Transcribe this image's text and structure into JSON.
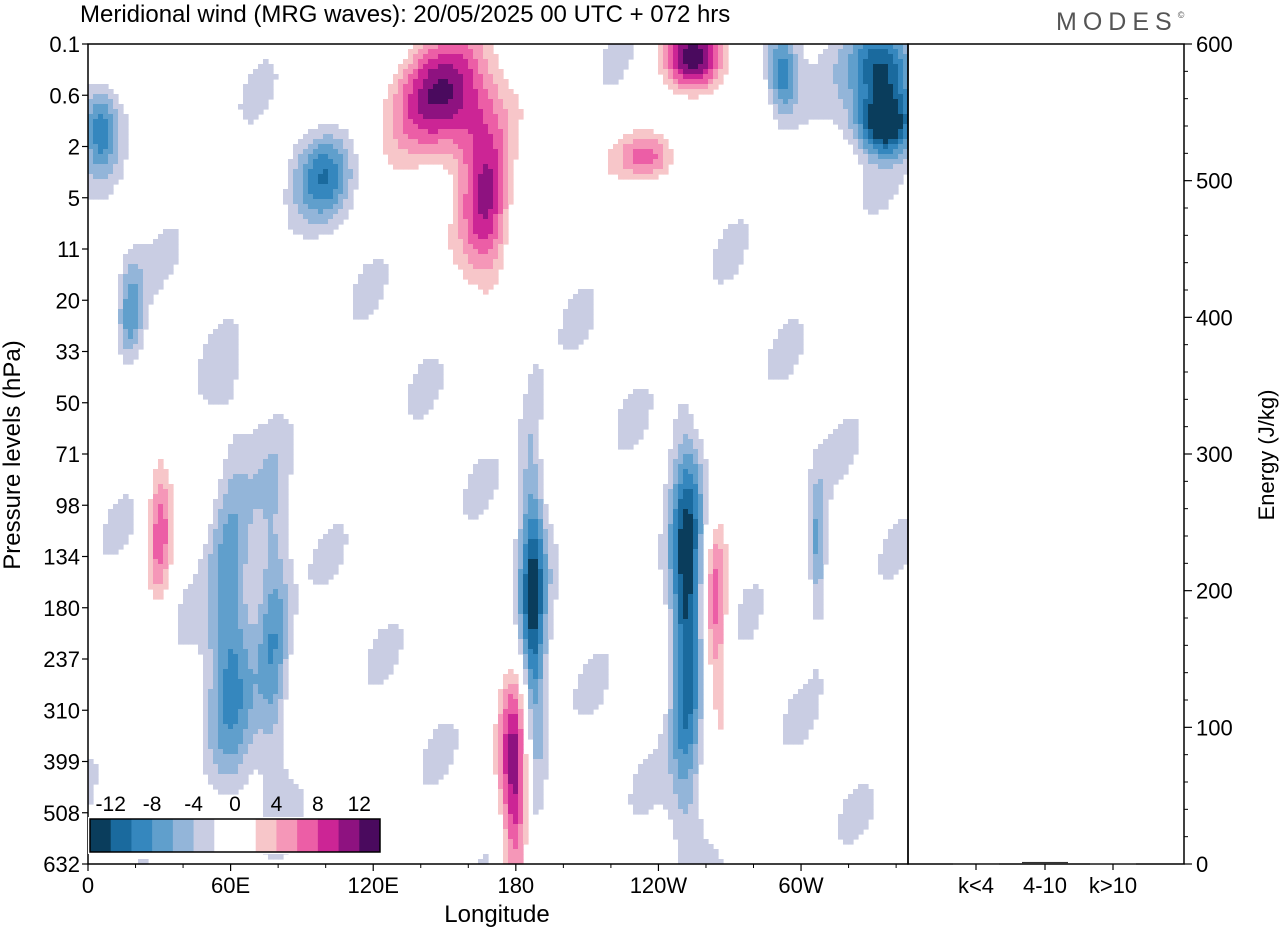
{
  "chart_data": {
    "type": "heatmap",
    "title": "Meridional wind (MRG waves):  20/05/2025  00 UTC  + 072 hrs",
    "xlabel": "Longitude",
    "ylabel": "Pressure levels (hPa)",
    "y2label": "Energy (J/kg)",
    "x_ticks": [
      {
        "lon": 0,
        "label": "0"
      },
      {
        "lon": 60,
        "label": "60E"
      },
      {
        "lon": 120,
        "label": "120E"
      },
      {
        "lon": 180,
        "label": "180"
      },
      {
        "lon": 240,
        "label": "120W"
      },
      {
        "lon": 300,
        "label": "60W"
      }
    ],
    "xlim": [
      0,
      345
    ],
    "y_ticks": [
      "0.1",
      "0.6",
      "2",
      "5",
      "11",
      "20",
      "33",
      "50",
      "71",
      "98",
      "134",
      "180",
      "237",
      "310",
      "399",
      "508",
      "632"
    ],
    "colorbar": {
      "labels": [
        "-12",
        "-8",
        "-4",
        "0",
        "4",
        "8",
        "12"
      ],
      "levels": [
        -14,
        -12,
        -10,
        -8,
        -6,
        -4,
        -2,
        2,
        4,
        6,
        8,
        10,
        12,
        14
      ],
      "colors": [
        "#0a3d5c",
        "#1a6a9e",
        "#3587be",
        "#609fcc",
        "#93b5d9",
        "#c9cde3",
        "#ffffff",
        "#ffffff",
        "#f7c6c9",
        "#f597b8",
        "#ec5ea6",
        "#cc2595",
        "#8e1280",
        "#4a0a5e"
      ]
    },
    "blobs": [
      {
        "lon": 180,
        "level": 14.5,
        "val": 14,
        "rlon": 5,
        "rlev": 1.6
      },
      {
        "lon": 187,
        "level": 11.5,
        "val": -12,
        "rlon": 4,
        "rlev": 2.8
      },
      {
        "lon": 252,
        "level": 11.2,
        "val": -14,
        "rlon": 5,
        "rlev": 2.5
      },
      {
        "lon": 264,
        "level": 11.0,
        "val": 10,
        "rlon": 4,
        "rlev": 1.4
      },
      {
        "lon": 307,
        "level": 10.0,
        "val": -8,
        "rlon": 3,
        "rlev": 1.0
      },
      {
        "lon": 150,
        "level": 1.0,
        "val": 15,
        "rlon": 15,
        "rlev": 0.9
      },
      {
        "lon": 168,
        "level": 3.1,
        "val": 12,
        "rlon": 8,
        "rlev": 1.2
      },
      {
        "lon": 255,
        "level": 0.3,
        "val": 14,
        "rlon": 9,
        "rlev": 0.5
      },
      {
        "lon": 335,
        "level": 0.5,
        "val": -14,
        "rlon": 10,
        "rlev": 0.7
      },
      {
        "lon": 335,
        "level": 1.6,
        "val": -12,
        "rlon": 8,
        "rlev": 0.4
      },
      {
        "lon": 5,
        "level": 1.6,
        "val": -8,
        "rlon": 5,
        "rlev": 0.6
      },
      {
        "lon": 18,
        "level": 5.3,
        "val": -7,
        "rlon": 4,
        "rlev": 0.8
      },
      {
        "lon": 60,
        "level": 11.2,
        "val": -9,
        "rlon": 7,
        "rlev": 2.2
      },
      {
        "lon": 78,
        "level": 11.4,
        "val": -8,
        "rlon": 5,
        "rlev": 1.8
      },
      {
        "lon": 30,
        "level": 9.6,
        "val": 9,
        "rlon": 4,
        "rlev": 1.2
      },
      {
        "lon": 237,
        "level": 2.2,
        "val": 10,
        "rlon": 10,
        "rlev": 0.4
      },
      {
        "lon": 100,
        "level": 2.6,
        "val": -8,
        "rlon": 9,
        "rlev": 0.6
      },
      {
        "lon": 292,
        "level": 0.6,
        "val": -10,
        "rlon": 5,
        "rlev": 0.6
      }
    ],
    "energy_axis": {
      "ylim": [
        0,
        600
      ],
      "ticks": [
        "0",
        "100",
        "200",
        "300",
        "400",
        "500",
        "600"
      ]
    },
    "energy_bars": [
      {
        "label": "k<4",
        "value": 0.5
      },
      {
        "label": "4-10",
        "value": 1.5
      },
      {
        "label": "k>10",
        "value": 0.3
      }
    ]
  },
  "brand": {
    "name": "MODES",
    "mark": "©"
  }
}
